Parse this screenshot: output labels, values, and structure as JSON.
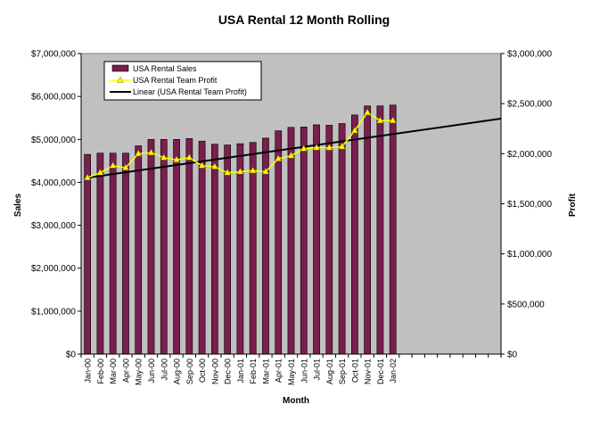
{
  "chart_data": {
    "type": "bar",
    "title": "USA Rental 12 Month Rolling",
    "xlabel": "Month",
    "ylabel_left": "Sales",
    "ylabel_right": "Profit",
    "categories": [
      "Jan-00",
      "Feb-00",
      "Mar-00",
      "Apr-00",
      "May-00",
      "Jun-00",
      "Jul-00",
      "Aug-00",
      "Sep-00",
      "Oct-00",
      "Nov-00",
      "Dec-00",
      "Jan-01",
      "Feb-01",
      "Mar-01",
      "Apr-01",
      "May-01",
      "Jun-01",
      "Jul-01",
      "Aug-01",
      "Sep-01",
      "Oct-01",
      "Nov-01",
      "Dec-01",
      "Jan-02"
    ],
    "ylim_left": [
      0,
      7000000
    ],
    "ylim_right": [
      0,
      3000000
    ],
    "yticks_left": [
      "$0",
      "$1,000,000",
      "$2,000,000",
      "$3,000,000",
      "$4,000,000",
      "$5,000,000",
      "$6,000,000",
      "$7,000,000"
    ],
    "yticks_right": [
      "$0",
      "$500,000",
      "$1,000,000",
      "$1,500,000",
      "$2,000,000",
      "$2,500,000",
      "$3,000,000"
    ],
    "grid": false,
    "legend_position": "top-left",
    "total_slots": 33,
    "series": [
      {
        "name": "USA Rental Sales",
        "kind": "bar",
        "axis": "left",
        "color": "#7a1d4f",
        "values": [
          4650000,
          4680000,
          4680000,
          4680000,
          4850000,
          5000000,
          5000000,
          5000000,
          5020000,
          4960000,
          4890000,
          4870000,
          4900000,
          4930000,
          5030000,
          5200000,
          5280000,
          5290000,
          5340000,
          5330000,
          5370000,
          5570000,
          5780000,
          5780000,
          5800000
        ]
      },
      {
        "name": "USA Rental Team Profit",
        "kind": "line",
        "axis": "right",
        "color": "#ffff00",
        "values": [
          1760000,
          1810000,
          1880000,
          1860000,
          2000000,
          2010000,
          1960000,
          1940000,
          1960000,
          1880000,
          1870000,
          1810000,
          1820000,
          1830000,
          1820000,
          1950000,
          1980000,
          2050000,
          2060000,
          2060000,
          2070000,
          2230000,
          2410000,
          2330000,
          2330000
        ]
      },
      {
        "name": "Linear (USA Rental Team Profit)",
        "kind": "trendline",
        "axis": "right",
        "color": "#000000",
        "start": 1760000,
        "end": 2350000
      }
    ],
    "colors": {
      "plot_background": "#c0c0c0"
    }
  }
}
